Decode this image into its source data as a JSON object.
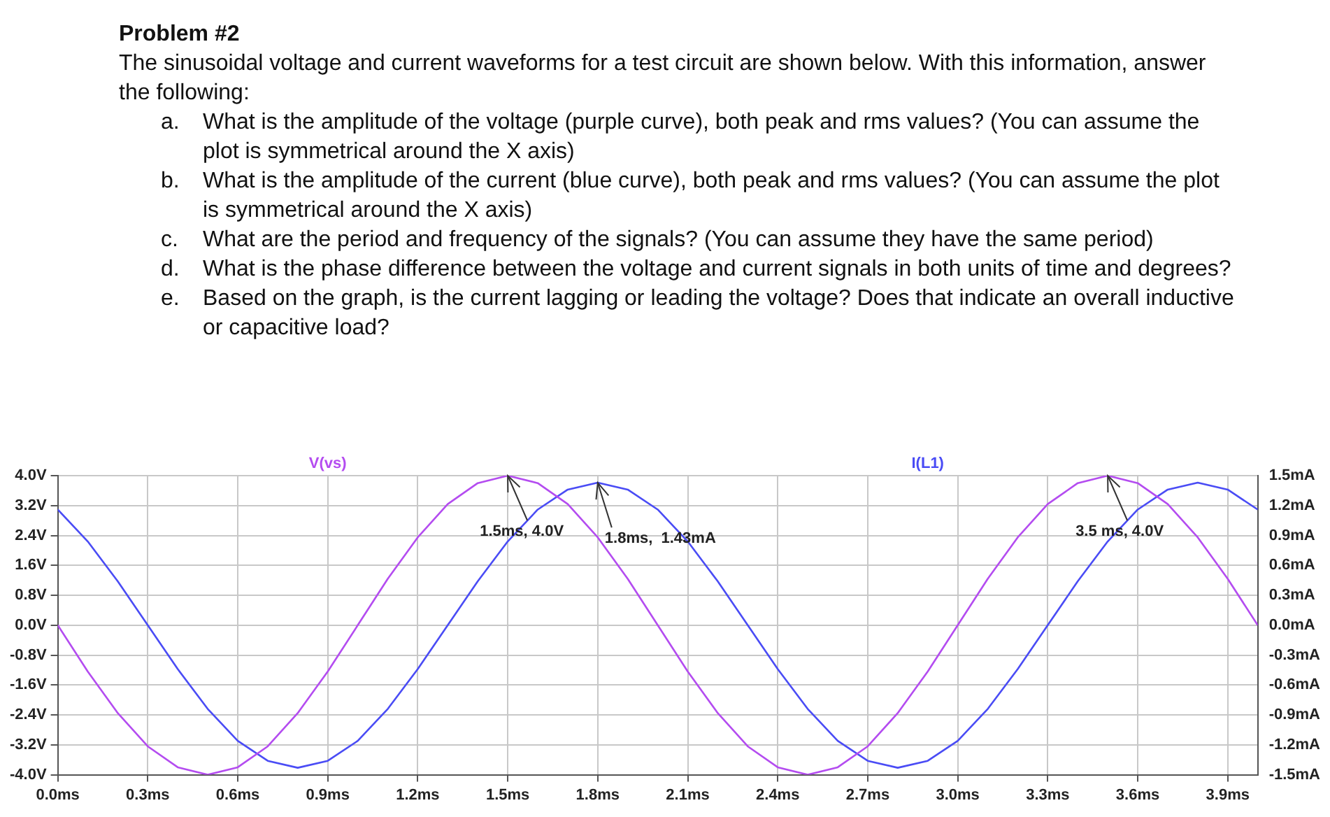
{
  "chart_data": {
    "type": "line",
    "title": "Problem #2",
    "subtitle": "The sinusoidal voltage and current waveforms for a test circuit are shown below.  With this information, answer the following:",
    "annotations": [
      "a.\tWhat is the amplitude of the voltage (purple curve), both peak and rms values? (You can assume the plot is symmetrical around the X axis)",
      "b.\tWhat is the amplitude of the current (blue curve), both peak and rms values?  (You can assume the plot is symmetrical around the X axis)",
      "c.\tWhat are the period and frequency of the signals?  (You can assume they have the same period)",
      "d.\tWhat is the phase difference between the voltage and current signals in both units of time and degrees?",
      "e.\tBased on the graph, is the current lagging or leading the voltage?  Does that indicate an overall inductive or capacitive load?",
      {
        "text": "1.5ms, 4.0V",
        "x": 1.5,
        "y": 4.0
      },
      {
        "text": "1.8ms,  1.43mA",
        "x": 1.8,
        "y": 3.81
      },
      {
        "text": "3.5 ms, 4.0V",
        "x": 3.5,
        "y": 4.0
      }
    ],
    "x": [
      0,
      0.1,
      0.2,
      0.3,
      0.4,
      0.5,
      0.6,
      0.7,
      0.8,
      0.9,
      1.0,
      1.1,
      1.2,
      1.3,
      1.4,
      1.5,
      1.6,
      1.7,
      1.8,
      1.9,
      2.0,
      2.1,
      2.2,
      2.3,
      2.4,
      2.5,
      2.6,
      2.7,
      2.8,
      2.9,
      3.0,
      3.1,
      3.2,
      3.3,
      3.4,
      3.5,
      3.6,
      3.7,
      3.8,
      3.9,
      4.0
    ],
    "series": [
      {
        "name": "V(vs)",
        "color": "#b44cf0",
        "values": [
          0,
          -1.24,
          -2.35,
          -3.24,
          -3.8,
          -4,
          -3.8,
          -3.24,
          -2.35,
          -1.24,
          0,
          1.24,
          2.35,
          3.24,
          3.8,
          4,
          3.8,
          3.24,
          2.35,
          1.24,
          0,
          -1.24,
          -2.35,
          -3.24,
          -3.8,
          -4,
          -3.8,
          -3.24,
          -2.35,
          -1.24,
          0,
          1.24,
          2.35,
          3.24,
          3.8,
          4,
          3.8,
          3.24,
          2.35,
          1.24,
          0
        ]
      },
      {
        "name": "I(L1)",
        "color": "#4a4cf5",
        "axis": "y2",
        "values": [
          1.16,
          0.84,
          0.44,
          0,
          -0.44,
          -0.84,
          -1.16,
          -1.36,
          -1.43,
          -1.36,
          -1.16,
          -0.84,
          -0.44,
          0,
          0.44,
          0.84,
          1.16,
          1.36,
          1.43,
          1.36,
          1.16,
          0.84,
          0.44,
          0,
          -0.44,
          -0.84,
          -1.16,
          -1.36,
          -1.43,
          -1.36,
          -1.16,
          -0.84,
          -0.44,
          0,
          0.44,
          0.84,
          1.16,
          1.36,
          1.43,
          1.36,
          1.16
        ]
      }
    ],
    "xlim": [
      0,
      4.0
    ],
    "xticks": [
      {
        "value": 0,
        "label": "0.0ms"
      },
      {
        "value": 0.3,
        "label": "0.3ms"
      },
      {
        "value": 0.6,
        "label": "0.6ms"
      },
      {
        "value": 0.9,
        "label": "0.9ms"
      },
      {
        "value": 1.2,
        "label": "1.2ms"
      },
      {
        "value": 1.5,
        "label": "1.5ms"
      },
      {
        "value": 1.8,
        "label": "1.8ms"
      },
      {
        "value": 2.1,
        "label": "2.1ms"
      },
      {
        "value": 2.4,
        "label": "2.4ms"
      },
      {
        "value": 2.7,
        "label": "2.7ms"
      },
      {
        "value": 3.0,
        "label": "3.0ms"
      },
      {
        "value": 3.3,
        "label": "3.3ms"
      },
      {
        "value": 3.6,
        "label": "3.6ms"
      },
      {
        "value": 3.9,
        "label": "3.9ms"
      }
    ],
    "ylim": [
      -4.0,
      4.0
    ],
    "yticks": [
      {
        "value": -4,
        "label": "-4.0V"
      },
      {
        "value": -3.2,
        "label": "-3.2V"
      },
      {
        "value": -2.4,
        "label": "-2.4V"
      },
      {
        "value": -1.6,
        "label": "-1.6V"
      },
      {
        "value": -0.8,
        "label": "-0.8V"
      },
      {
        "value": 0,
        "label": "0.0V"
      },
      {
        "value": 0.8,
        "label": "0.8V"
      },
      {
        "value": 1.6,
        "label": "1.6V"
      },
      {
        "value": 2.4,
        "label": "2.4V"
      },
      {
        "value": 3.2,
        "label": "3.2V"
      },
      {
        "value": 4,
        "label": "4.0V"
      }
    ],
    "y2lim": [
      -1.5,
      1.5
    ],
    "y2ticks": [
      {
        "value": -1.5,
        "label": "-1.5mA"
      },
      {
        "value": -1.2,
        "label": "-1.2mA"
      },
      {
        "value": -0.9,
        "label": "-0.9mA"
      },
      {
        "value": -0.6,
        "label": "-0.6mA"
      },
      {
        "value": -0.3,
        "label": "-0.3mA"
      },
      {
        "value": 0,
        "label": "0.0mA"
      },
      {
        "value": 0.3,
        "label": "0.3mA"
      },
      {
        "value": 0.6,
        "label": "0.6mA"
      },
      {
        "value": 0.9,
        "label": "0.9mA"
      },
      {
        "value": 1.2,
        "label": "1.2mA"
      },
      {
        "value": 1.5,
        "label": "1.5mA"
      }
    ],
    "grid": true,
    "legend": "top",
    "marker": "none",
    "line_style": "solid"
  }
}
